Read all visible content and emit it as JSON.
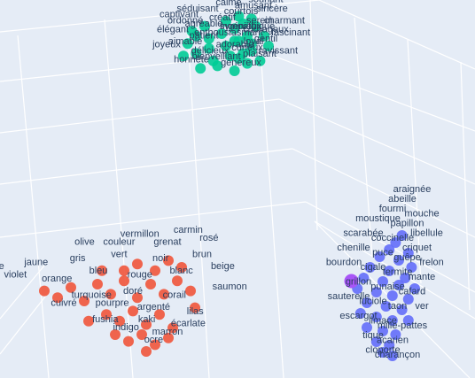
{
  "chart_data": {
    "type": "scatter",
    "title": "",
    "xlabel": "",
    "ylabel": "",
    "grid": true,
    "colors": {
      "background": "#e5ecf6",
      "grid": "#ffffff",
      "label": "#2a3f5f",
      "highlight": "#a855f7"
    },
    "series": [
      {
        "color": "#00cc96",
        "labels": [
          "enthousiasmant",
          "sympathique",
          "agréable",
          "gentil",
          "aimable",
          "courtois",
          "bienveillant",
          "charmant",
          "élégant",
          "plaisant",
          "séduisant",
          "adorable",
          "ravissant",
          "délicieux",
          "amusant",
          "captivant",
          "fascinant",
          "joyeux",
          "sincère",
          "honnête",
          "généreux",
          "calme",
          "serein",
          "patient",
          "curieux",
          "créatif",
          "courageux",
          "ordonné",
          "ingénieux",
          "loyal",
          "tendre",
          "souriant"
        ],
        "points": [
          [
            0.0,
            0.0
          ],
          [
            0.3,
            0.2
          ],
          [
            -0.4,
            0.3
          ],
          [
            0.6,
            -0.2
          ],
          [
            -0.7,
            -0.3
          ],
          [
            0.2,
            0.7
          ],
          [
            -0.2,
            -0.8
          ],
          [
            0.9,
            0.4
          ],
          [
            -0.9,
            0.1
          ],
          [
            0.5,
            -0.7
          ],
          [
            -0.5,
            0.8
          ],
          [
            0.1,
            -0.4
          ],
          [
            0.8,
            -0.6
          ],
          [
            -0.3,
            -0.6
          ],
          [
            0.4,
            0.9
          ],
          [
            -0.8,
            0.6
          ],
          [
            1.0,
            0.0
          ],
          [
            -1.0,
            -0.4
          ],
          [
            0.7,
            0.8
          ],
          [
            -0.6,
            -0.9
          ],
          [
            0.2,
            -1.0
          ],
          [
            0.0,
            1.0
          ],
          [
            0.5,
            0.4
          ],
          [
            -0.4,
            -0.1
          ],
          [
            0.3,
            -0.5
          ],
          [
            -0.1,
            0.5
          ],
          [
            0.6,
            0.1
          ],
          [
            -0.7,
            0.4
          ],
          [
            0.2,
            0.2
          ],
          [
            0.4,
            -0.3
          ],
          [
            0.3,
            1.2
          ],
          [
            0.6,
            1.1
          ]
        ]
      },
      {
        "color": "#ef553b",
        "labels": [
          "rose",
          "violet",
          "jaune",
          "orange",
          "gris",
          "bleu",
          "vert",
          "rouge",
          "noir",
          "blanc",
          "brun",
          "beige",
          "turquoise",
          "pourpre",
          "doré",
          "argenté",
          "corail",
          "lilas",
          "fushia",
          "indigo",
          "kaki",
          "marron",
          "écarlate",
          "couleur",
          "vermillon",
          "grenat",
          "carmin",
          "rosé",
          "saumon",
          "cuivré",
          "olive",
          "ocre"
        ],
        "highlight": "rose",
        "points": [
          [
            -2.0,
            0.3
          ],
          [
            -1.7,
            0.1
          ],
          [
            -1.4,
            0.4
          ],
          [
            -1.1,
            0.0
          ],
          [
            -0.8,
            0.5
          ],
          [
            -0.5,
            0.2
          ],
          [
            -0.2,
            0.6
          ],
          [
            0.1,
            0.1
          ],
          [
            0.4,
            0.5
          ],
          [
            0.7,
            0.2
          ],
          [
            1.0,
            0.6
          ],
          [
            1.3,
            0.3
          ],
          [
            -0.6,
            -0.4
          ],
          [
            -0.3,
            -0.6
          ],
          [
            0.0,
            -0.3
          ],
          [
            0.3,
            -0.7
          ],
          [
            0.6,
            -0.4
          ],
          [
            0.9,
            -0.8
          ],
          [
            -0.4,
            -1.0
          ],
          [
            -0.1,
            -1.2
          ],
          [
            0.2,
            -1.0
          ],
          [
            0.5,
            -1.3
          ],
          [
            0.8,
            -1.1
          ],
          [
            -0.2,
            0.9
          ],
          [
            0.1,
            1.1
          ],
          [
            0.5,
            0.9
          ],
          [
            0.8,
            1.2
          ],
          [
            1.1,
            1.0
          ],
          [
            1.4,
            -0.2
          ],
          [
            -1.0,
            -0.6
          ],
          [
            -0.7,
            0.9
          ],
          [
            0.3,
            -1.5
          ]
        ]
      },
      {
        "color": "#636efa",
        "labels": [
          "araignée",
          "abeille",
          "fourmi",
          "mouche",
          "moustique",
          "papillon",
          "libellule",
          "scarabée",
          "coccinelle",
          "criquet",
          "chenille",
          "puce",
          "guêpe",
          "frelon",
          "bourdon",
          "cigale",
          "termite",
          "mante",
          "grillon",
          "punaise",
          "cafard",
          "sauterelle",
          "luciole",
          "taon",
          "ver",
          "escargot",
          "limace",
          "mille-pattes",
          "tique",
          "acarien",
          "cloporte",
          "charançon"
        ],
        "highlight": "grillon",
        "points": [
          [
            0.6,
            1.6
          ],
          [
            0.4,
            1.4
          ],
          [
            0.2,
            1.2
          ],
          [
            0.8,
            1.1
          ],
          [
            -0.1,
            1.0
          ],
          [
            0.5,
            0.9
          ],
          [
            0.9,
            0.7
          ],
          [
            -0.4,
            0.7
          ],
          [
            0.2,
            0.6
          ],
          [
            0.7,
            0.4
          ],
          [
            -0.6,
            0.4
          ],
          [
            0.0,
            0.3
          ],
          [
            0.5,
            0.2
          ],
          [
            1.0,
            0.1
          ],
          [
            -0.8,
            0.1
          ],
          [
            -0.2,
            0.0
          ],
          [
            0.3,
            -0.1
          ],
          [
            0.8,
            -0.2
          ],
          [
            -0.5,
            -0.3
          ],
          [
            0.1,
            -0.4
          ],
          [
            0.6,
            -0.5
          ],
          [
            -0.7,
            -0.6
          ],
          [
            -0.2,
            -0.7
          ],
          [
            0.3,
            -0.8
          ],
          [
            0.8,
            -0.8
          ],
          [
            -0.5,
            -1.0
          ],
          [
            0.0,
            -1.1
          ],
          [
            0.4,
            -1.2
          ],
          [
            -0.2,
            -1.4
          ],
          [
            0.2,
            -1.5
          ],
          [
            0.0,
            -1.7
          ],
          [
            0.3,
            -1.8
          ]
        ]
      }
    ]
  }
}
